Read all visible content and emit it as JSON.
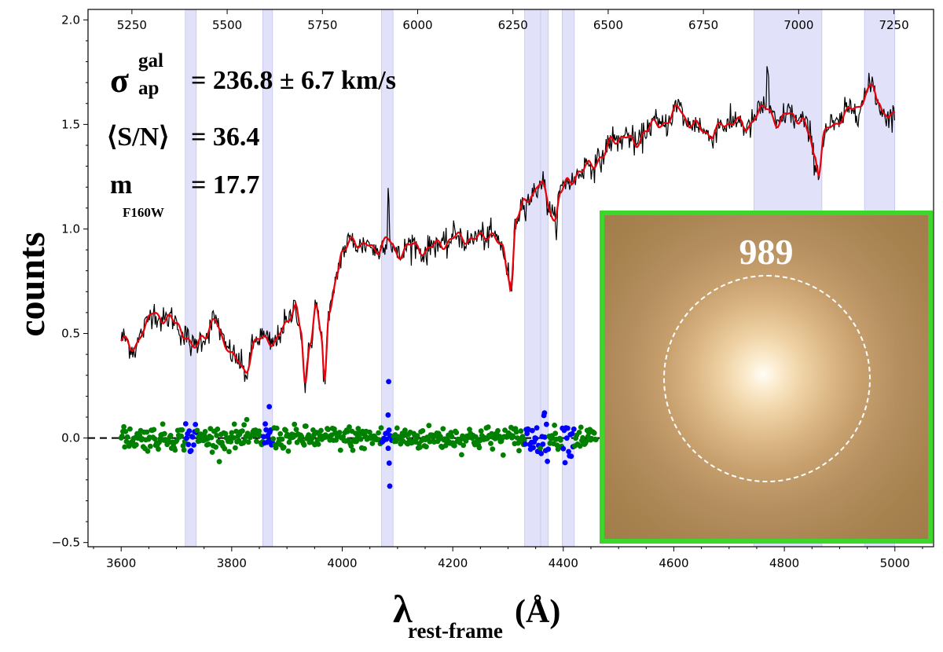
{
  "chart_data": {
    "type": "line",
    "xlabel_main": "λ",
    "xlabel_sub": "rest-frame",
    "xlabel_unit": "(Å)",
    "ylabel": "counts",
    "xlim": [
      3540,
      5070
    ],
    "ylim": [
      -0.52,
      2.05
    ],
    "x_ticks": [
      "3600",
      "3800",
      "4000",
      "4200",
      "4400",
      "4600",
      "4800",
      "5000"
    ],
    "x_tick_values": [
      3600,
      3800,
      4000,
      4200,
      4400,
      4600,
      4800,
      5000
    ],
    "y_ticks": [
      "−0.5",
      "0.0",
      "0.5",
      "1.0",
      "1.5",
      "2.0"
    ],
    "y_tick_values": [
      -0.5,
      0.0,
      0.5,
      1.0,
      1.5,
      2.0
    ],
    "top_ticks": [
      "5250",
      "5500",
      "5750",
      "6000",
      "6250",
      "6500",
      "6750",
      "7000",
      "7250"
    ],
    "top_tick_values": [
      5250,
      5500,
      5750,
      6000,
      6250,
      6500,
      6750,
      7000,
      7250
    ],
    "masked_regions": [
      [
        3716,
        3736
      ],
      [
        3856,
        3874
      ],
      [
        4071,
        4092
      ],
      [
        4330,
        4358
      ],
      [
        4360,
        4373
      ],
      [
        4398,
        4420
      ],
      [
        4745,
        4868
      ],
      [
        4945,
        5000
      ]
    ],
    "model_knots": [
      [
        3600,
        0.48
      ],
      [
        3620,
        0.42
      ],
      [
        3640,
        0.52
      ],
      [
        3660,
        0.6
      ],
      [
        3680,
        0.57
      ],
      [
        3700,
        0.55
      ],
      [
        3715,
        0.5
      ],
      [
        3730,
        0.42
      ],
      [
        3750,
        0.5
      ],
      [
        3770,
        0.55
      ],
      [
        3790,
        0.45
      ],
      [
        3810,
        0.36
      ],
      [
        3825,
        0.32
      ],
      [
        3840,
        0.45
      ],
      [
        3860,
        0.48
      ],
      [
        3880,
        0.46
      ],
      [
        3900,
        0.55
      ],
      [
        3915,
        0.65
      ],
      [
        3925,
        0.5
      ],
      [
        3933,
        0.25
      ],
      [
        3942,
        0.45
      ],
      [
        3952,
        0.66
      ],
      [
        3962,
        0.48
      ],
      [
        3968,
        0.27
      ],
      [
        3976,
        0.58
      ],
      [
        3990,
        0.8
      ],
      [
        4000,
        0.88
      ],
      [
        4020,
        0.95
      ],
      [
        4040,
        0.92
      ],
      [
        4060,
        0.9
      ],
      [
        4080,
        0.95
      ],
      [
        4100,
        0.88
      ],
      [
        4120,
        0.92
      ],
      [
        4150,
        0.9
      ],
      [
        4180,
        0.93
      ],
      [
        4210,
        0.96
      ],
      [
        4240,
        0.95
      ],
      [
        4270,
        0.98
      ],
      [
        4290,
        0.9
      ],
      [
        4300,
        0.8
      ],
      [
        4305,
        0.72
      ],
      [
        4315,
        1.05
      ],
      [
        4330,
        1.12
      ],
      [
        4345,
        1.18
      ],
      [
        4360,
        1.22
      ],
      [
        4375,
        1.1
      ],
      [
        4385,
        1.05
      ],
      [
        4395,
        1.18
      ],
      [
        4410,
        1.22
      ],
      [
        4430,
        1.28
      ],
      [
        4450,
        1.3
      ],
      [
        4470,
        1.35
      ],
      [
        4490,
        1.42
      ],
      [
        4510,
        1.45
      ],
      [
        4530,
        1.4
      ],
      [
        4550,
        1.48
      ],
      [
        4570,
        1.5
      ],
      [
        4590,
        1.52
      ],
      [
        4610,
        1.58
      ],
      [
        4630,
        1.5
      ],
      [
        4650,
        1.48
      ],
      [
        4670,
        1.45
      ],
      [
        4690,
        1.5
      ],
      [
        4710,
        1.52
      ],
      [
        4730,
        1.48
      ],
      [
        4750,
        1.55
      ],
      [
        4770,
        1.58
      ],
      [
        4790,
        1.5
      ],
      [
        4810,
        1.56
      ],
      [
        4830,
        1.52
      ],
      [
        4845,
        1.45
      ],
      [
        4855,
        1.35
      ],
      [
        4862,
        1.28
      ],
      [
        4872,
        1.45
      ],
      [
        4890,
        1.5
      ],
      [
        4910,
        1.55
      ],
      [
        4930,
        1.58
      ],
      [
        4950,
        1.65
      ],
      [
        4960,
        1.68
      ],
      [
        4970,
        1.6
      ],
      [
        4980,
        1.58
      ],
      [
        4990,
        1.52
      ],
      [
        5000,
        1.55
      ]
    ],
    "annotations": {
      "sigma_symbol": "σ",
      "sigma_sup": "gal",
      "sigma_sub": "ap",
      "sigma_value": "= 236.8 ± 6.7 km/s",
      "sn_label": "⟨S/N⟩",
      "sn_value": "= 36.4",
      "mag_symbol": "m",
      "mag_sub": "F160W",
      "mag_value": "= 17.7"
    },
    "series": [
      {
        "name": "observed spectrum",
        "color": "#000000"
      },
      {
        "name": "best-fit model",
        "color": "#e8000b"
      },
      {
        "name": "residuals",
        "color": "#008000"
      },
      {
        "name": "masked residuals",
        "color": "#0000ff"
      }
    ]
  },
  "inset": {
    "id_label": "989",
    "border_color": "#3fd62b"
  }
}
